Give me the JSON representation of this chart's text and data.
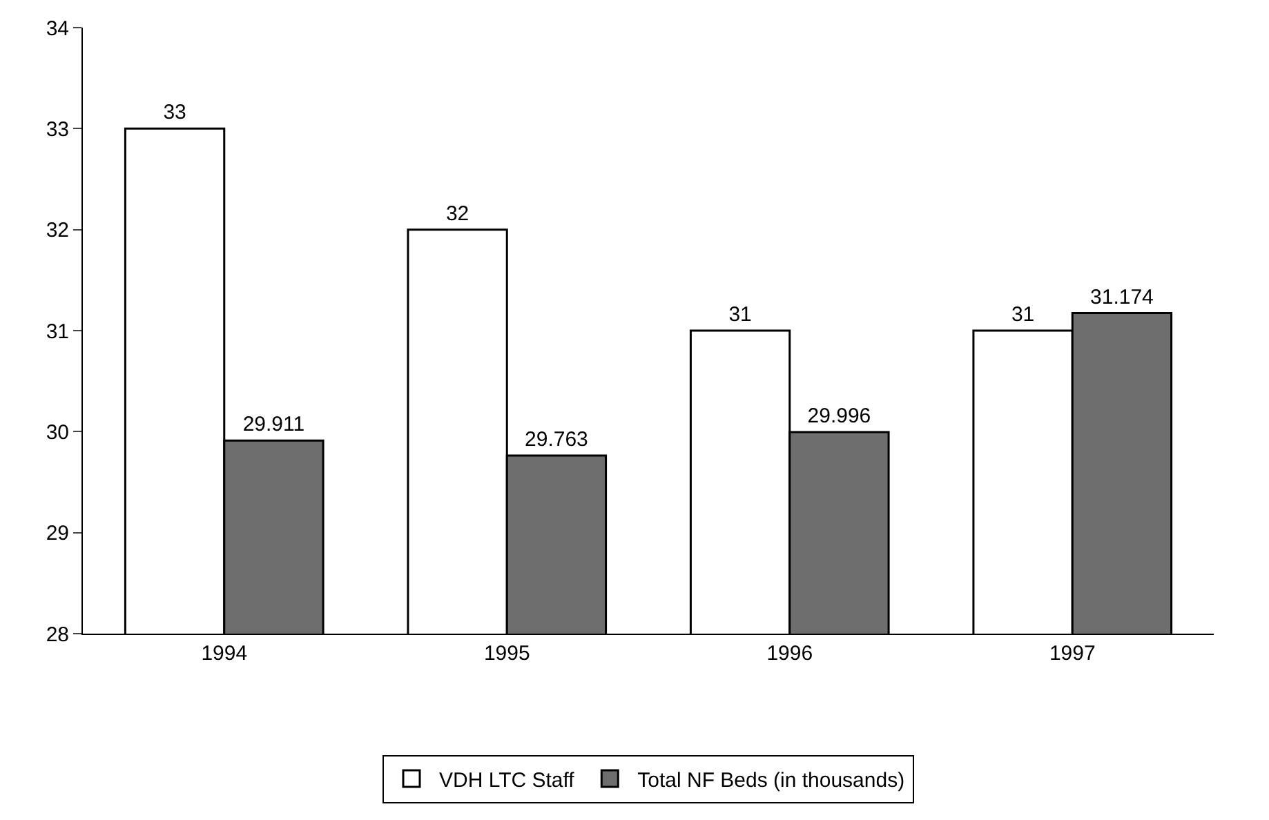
{
  "chart_data": {
    "type": "bar",
    "categories": [
      "1994",
      "1995",
      "1996",
      "1997"
    ],
    "series": [
      {
        "name": "VDH LTC Staff",
        "color": "#ffffff",
        "values": [
          33,
          32,
          31,
          31
        ]
      },
      {
        "name": "Total NF Beds (in thousands)",
        "color": "#6e6e6e",
        "values": [
          29.911,
          29.763,
          29.996,
          31.174
        ]
      }
    ],
    "ylim": [
      28,
      34
    ],
    "yticks": [
      28,
      29,
      30,
      31,
      32,
      33,
      34
    ],
    "data_labels": true,
    "legend": "bottom"
  }
}
